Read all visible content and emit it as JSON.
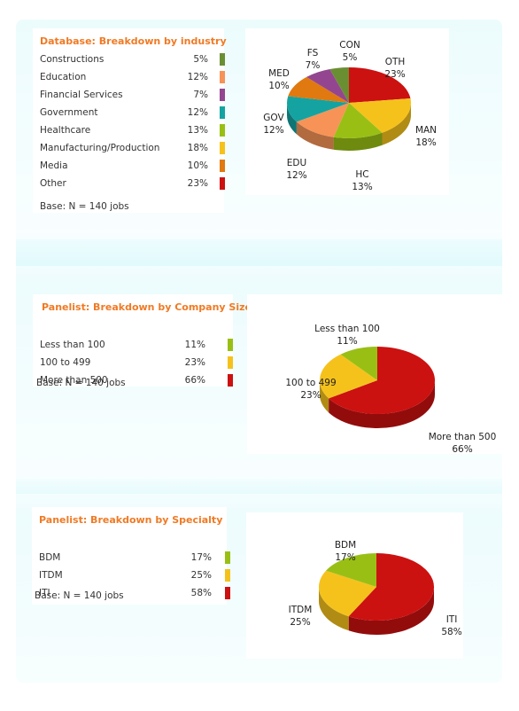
{
  "chart_data": [
    {
      "type": "pie",
      "title": "Database: Breakdown by industry",
      "base": "Base: N = 140 jobs",
      "slices": [
        {
          "name": "Constructions",
          "code": "CON",
          "value": 5,
          "label": "5%",
          "color": "#6a8f33"
        },
        {
          "name": "Education",
          "code": "EDU",
          "value": 12,
          "label": "12%",
          "color": "#f79357"
        },
        {
          "name": "Financial Services",
          "code": "FS",
          "value": 7,
          "label": "7%",
          "color": "#93468f"
        },
        {
          "name": "Government",
          "code": "GOV",
          "value": 12,
          "label": "12%",
          "color": "#14a3a1"
        },
        {
          "name": "Healthcare",
          "code": "HC",
          "value": 13,
          "label": "13%",
          "color": "#99bf15"
        },
        {
          "name": "Manufacturing/Production",
          "code": "MAN",
          "value": 18,
          "label": "18%",
          "color": "#f5c21c"
        },
        {
          "name": "Media",
          "code": "MED",
          "value": 10,
          "label": "10%",
          "color": "#e0790f"
        },
        {
          "name": "Other",
          "code": "OTH",
          "value": 23,
          "label": "23%",
          "color": "#cc1111"
        }
      ]
    },
    {
      "type": "pie",
      "title": "Panelist: Breakdown by Company Size",
      "base": "Base: N = 140 jobs",
      "slices": [
        {
          "name": "Less than 100",
          "code": "Less than 100",
          "value": 11,
          "label": "11%",
          "color": "#99bf15"
        },
        {
          "name": "100 to 499",
          "code": "100 to 499",
          "value": 23,
          "label": "23%",
          "color": "#f5c21c"
        },
        {
          "name": "More than 500",
          "code": "More than 500",
          "value": 66,
          "label": "66%",
          "color": "#cc1111"
        }
      ]
    },
    {
      "type": "pie",
      "title": "Panelist: Breakdown by Specialty",
      "base": "Base: N = 140 jobs",
      "slices": [
        {
          "name": "BDM",
          "code": "BDM",
          "value": 17,
          "label": "17%",
          "color": "#99bf15"
        },
        {
          "name": "ITDM",
          "code": "ITDM",
          "value": 25,
          "label": "25%",
          "color": "#f5c21c"
        },
        {
          "name": "ITI",
          "code": "ITI",
          "value": 58,
          "label": "58%",
          "color": "#cc1111"
        }
      ]
    }
  ]
}
